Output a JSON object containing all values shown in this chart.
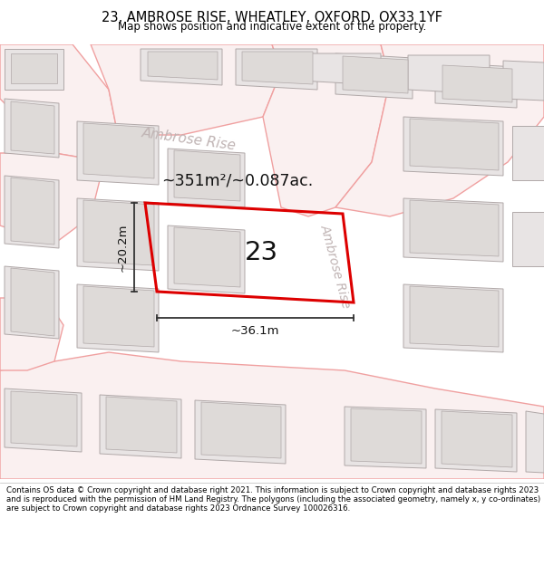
{
  "title": "23, AMBROSE RISE, WHEATLEY, OXFORD, OX33 1YF",
  "subtitle": "Map shows position and indicative extent of the property.",
  "footer": "Contains OS data © Crown copyright and database right 2021. This information is subject to Crown copyright and database rights 2023 and is reproduced with the permission of HM Land Registry. The polygons (including the associated geometry, namely x, y co-ordinates) are subject to Crown copyright and database rights 2023 Ordnance Survey 100026316.",
  "area_label": "~351m²/~0.087ac.",
  "width_label": "~36.1m",
  "height_label": "~20.2m",
  "plot_number": "23",
  "map_bg": "#ffffff",
  "road_line_color": "#f0a0a0",
  "road_fill_color": "#faf0f0",
  "building_edge": "#b0a8a8",
  "building_fill": "#e8e4e4",
  "plot_color": "#dd0000",
  "plot_lw": 2.2,
  "street_label": "Ambrose Rise",
  "street_label2": "Ambrose Rise",
  "street_color": "#c0b4b4",
  "dim_color": "#333333",
  "label_color": "#111111"
}
